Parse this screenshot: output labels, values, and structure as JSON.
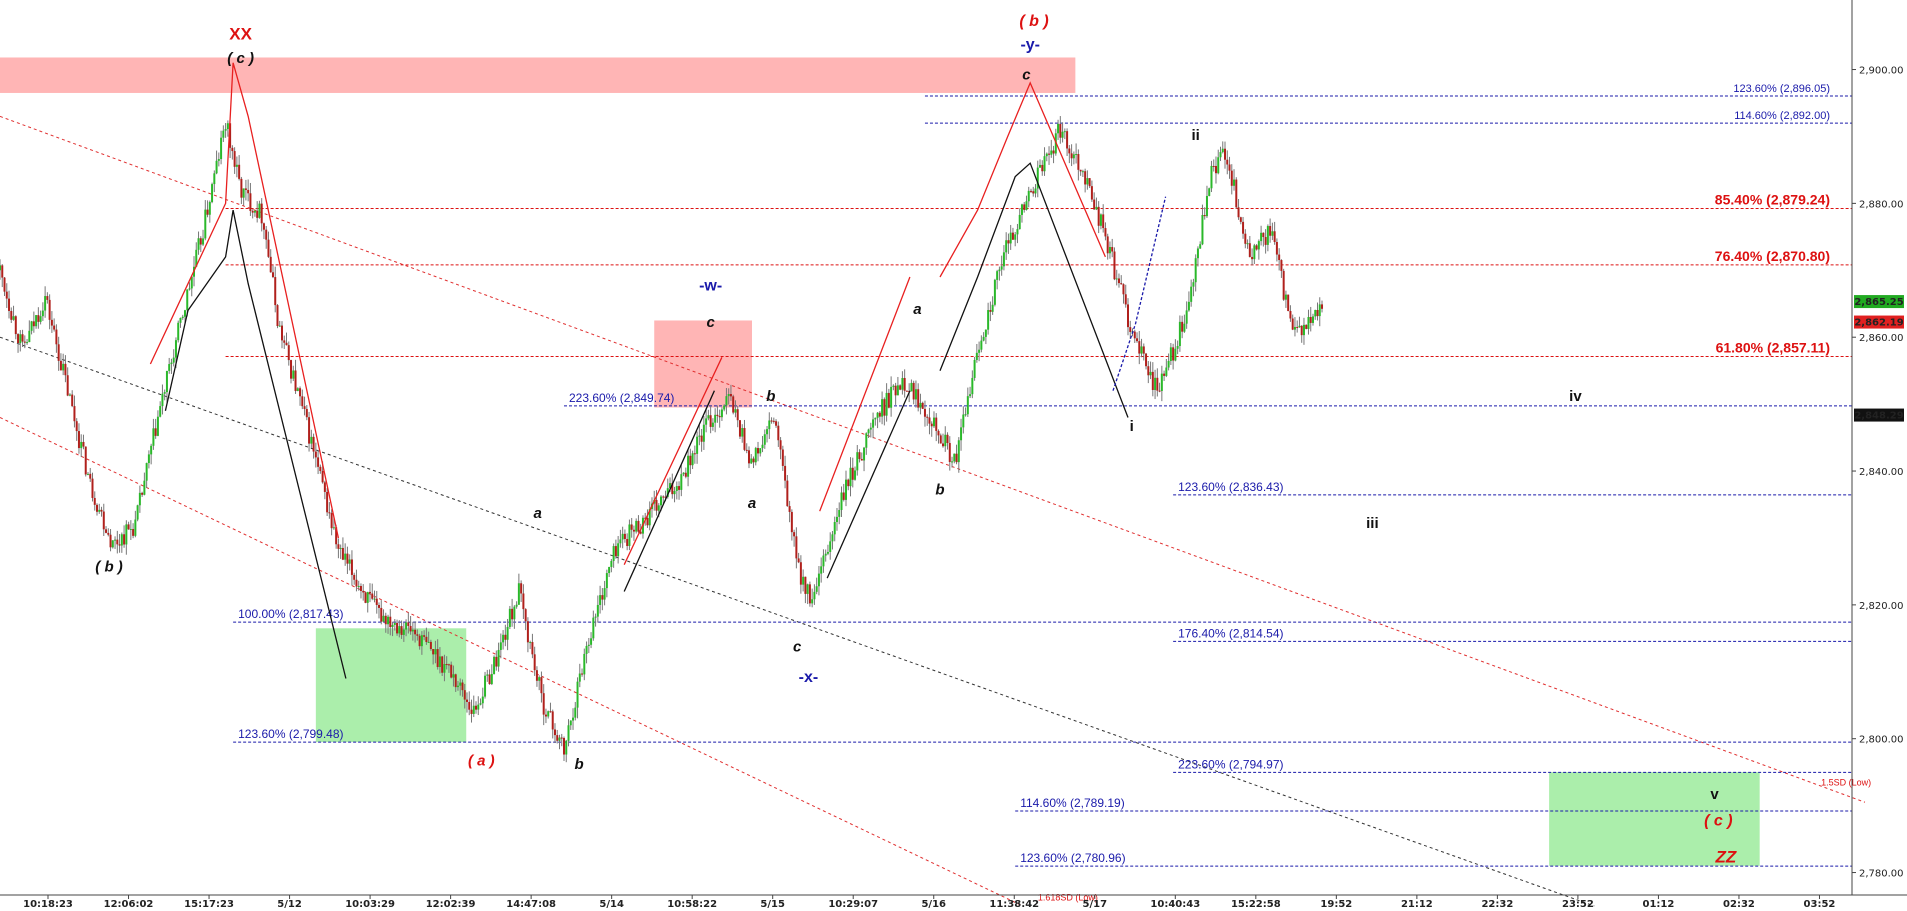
{
  "chart_data": {
    "type": "candlestick",
    "y_axis": {
      "range": [
        2775,
        2908
      ],
      "ticks": [
        2780,
        2800,
        2820,
        2840,
        2860,
        2880,
        2900
      ],
      "tick_labels": [
        "2,780.00",
        "2,800.00",
        "2,820.00",
        "2,840.00",
        "2,860.00",
        "2,880.00",
        "2,900.00"
      ]
    },
    "x_axis": {
      "tick_labels": [
        "10:18:23",
        "12:06:02",
        "15:17:23",
        "5/12",
        "10:03:29",
        "12:02:39",
        "14:47:08",
        "5/14",
        "10:58:22",
        "5/15",
        "10:29:07",
        "5/16",
        "11:38:42",
        "5/17",
        "10:40:43",
        "15:22:58",
        "19:52",
        "21:12",
        "22:32",
        "23:52",
        "01:12",
        "02:32",
        "03:52"
      ]
    },
    "price_badges": [
      {
        "value": 2865.25,
        "label": "2,865.25",
        "color": "#22aa22"
      },
      {
        "value": 2862.19,
        "label": "2,862.19",
        "color": "#e02020"
      },
      {
        "value": 2848.29,
        "label": "2,848.29",
        "color": "#111111"
      }
    ],
    "price_path": [
      [
        0,
        2870
      ],
      [
        3,
        2858
      ],
      [
        6,
        2866
      ],
      [
        9,
        2852
      ],
      [
        12,
        2838
      ],
      [
        15,
        2829
      ],
      [
        18,
        2832
      ],
      [
        21,
        2848
      ],
      [
        24,
        2862
      ],
      [
        27,
        2876
      ],
      [
        30,
        2892
      ],
      [
        32,
        2882
      ],
      [
        35,
        2878
      ],
      [
        37,
        2862
      ],
      [
        41,
        2846
      ],
      [
        45,
        2828
      ],
      [
        50,
        2819
      ],
      [
        55,
        2816
      ],
      [
        60,
        2810
      ],
      [
        63,
        2804
      ],
      [
        66,
        2812
      ],
      [
        69,
        2822
      ],
      [
        72,
        2806
      ],
      [
        75,
        2798
      ],
      [
        78,
        2814
      ],
      [
        82,
        2829
      ],
      [
        86,
        2833
      ],
      [
        90,
        2838
      ],
      [
        94,
        2847
      ],
      [
        97,
        2851
      ],
      [
        100,
        2841
      ],
      [
        103,
        2848
      ],
      [
        106,
        2826
      ],
      [
        108,
        2820
      ],
      [
        112,
        2836
      ],
      [
        116,
        2847
      ],
      [
        120,
        2854
      ],
      [
        124,
        2848
      ],
      [
        127,
        2841
      ],
      [
        130,
        2858
      ],
      [
        134,
        2874
      ],
      [
        138,
        2884
      ],
      [
        141,
        2891
      ],
      [
        144,
        2885
      ],
      [
        147,
        2875
      ],
      [
        151,
        2859
      ],
      [
        154,
        2852
      ],
      [
        158,
        2864
      ],
      [
        161,
        2884
      ],
      [
        163,
        2888
      ],
      [
        166,
        2872
      ],
      [
        169,
        2876
      ],
      [
        172,
        2860
      ],
      [
        176,
        2864
      ]
    ],
    "fib_levels": [
      {
        "label": "123.60% (2,896.05)",
        "value": 2896.05,
        "color": "#1a1aaa",
        "x0": 123,
        "bold": false,
        "size": "s"
      },
      {
        "label": "114.60% (2,892.00)",
        "value": 2892.0,
        "color": "#1a1aaa",
        "x0": 123,
        "bold": false,
        "size": "s"
      },
      {
        "label": "85.40% (2,879.24)",
        "value": 2879.24,
        "color": "#dd1111",
        "x0": 30,
        "bold": true,
        "size": "l"
      },
      {
        "label": "76.40% (2,870.80)",
        "value": 2870.8,
        "color": "#dd1111",
        "x0": 30,
        "bold": true,
        "size": "l"
      },
      {
        "label": "61.80% (2,857.11)",
        "value": 2857.11,
        "color": "#dd1111",
        "x0": 30,
        "bold": true,
        "size": "l"
      },
      {
        "label": "223.60% (2,849.74)",
        "value": 2849.74,
        "color": "#1a1aaa",
        "x0": 75,
        "bold": false,
        "size": "m"
      },
      {
        "label": "123.60% (2,836.43)",
        "value": 2836.43,
        "color": "#1a1aaa",
        "x0": 156,
        "bold": false,
        "size": "m"
      },
      {
        "label": "100.00% (2,817.43)",
        "value": 2817.43,
        "color": "#1a1aaa",
        "x0": 31,
        "bold": false,
        "size": "m"
      },
      {
        "label": "176.40% (2,814.54)",
        "value": 2814.54,
        "color": "#1a1aaa",
        "x0": 156,
        "bold": false,
        "size": "m"
      },
      {
        "label": "123.60% (2,799.48)",
        "value": 2799.48,
        "color": "#1a1aaa",
        "x0": 31,
        "bold": false,
        "size": "m"
      },
      {
        "label": "223.60% (2,794.97)",
        "value": 2794.97,
        "color": "#1a1aaa",
        "x0": 156,
        "bold": false,
        "size": "m"
      },
      {
        "label": "114.60% (2,789.19)",
        "value": 2789.19,
        "color": "#1a1aaa",
        "x0": 135,
        "bold": false,
        "size": "m"
      },
      {
        "label": "123.60% (2,780.96)",
        "value": 2780.96,
        "color": "#1a1aaa",
        "x0": 135,
        "bold": false,
        "size": "m"
      }
    ],
    "zones": [
      {
        "x0": 0,
        "x1": 143,
        "y0": 2896.5,
        "y1": 2901.8,
        "color": "#ff6b6b"
      },
      {
        "x0": 87,
        "x1": 100,
        "y0": 2849.5,
        "y1": 2862.5,
        "color": "#ff6b6b"
      },
      {
        "x0": 42,
        "x1": 62,
        "y0": 2799.5,
        "y1": 2816.5,
        "color": "#66e066"
      },
      {
        "x0": 206,
        "x1": 234,
        "y0": 2781,
        "y1": 2795,
        "color": "#66e066"
      }
    ],
    "channel_lines": [
      {
        "x0": 0,
        "y0": 2893,
        "x1": 248,
        "y1": 2790.5,
        "color": "#e03030",
        "dash": "3,3"
      },
      {
        "x0": 0,
        "y0": 2848,
        "x1": 136,
        "y1": 2775,
        "color": "#e03030",
        "dash": "3,3"
      },
      {
        "x0": 0,
        "y0": 2860,
        "x1": 212,
        "y1": 2775,
        "color": "#333333",
        "dash": "3,3"
      }
    ],
    "wave_lines": [
      {
        "points": [
          [
            20,
            2856
          ],
          [
            25,
            2868
          ],
          [
            30,
            2880
          ],
          [
            31,
            2901
          ],
          [
            33,
            2893
          ],
          [
            45,
            2830
          ]
        ],
        "color": "#e82020"
      },
      {
        "points": [
          [
            22,
            2849
          ],
          [
            25,
            2864
          ],
          [
            30,
            2872
          ],
          [
            31,
            2879
          ],
          [
            33,
            2868
          ],
          [
            46,
            2809
          ]
        ],
        "color": "#111111"
      },
      {
        "points": [
          [
            83,
            2826
          ],
          [
            96,
            2857
          ]
        ],
        "color": "#e82020"
      },
      {
        "points": [
          [
            83,
            2822
          ],
          [
            95,
            2852
          ]
        ],
        "color": "#111111"
      },
      {
        "points": [
          [
            109,
            2834
          ],
          [
            121,
            2869
          ]
        ],
        "color": "#e82020"
      },
      {
        "points": [
          [
            110,
            2824
          ],
          [
            121,
            2852
          ]
        ],
        "color": "#111111"
      },
      {
        "points": [
          [
            125,
            2869
          ],
          [
            130,
            2879
          ],
          [
            134,
            2890
          ],
          [
            137,
            2898
          ],
          [
            147,
            2872
          ]
        ],
        "color": "#e82020"
      },
      {
        "points": [
          [
            125,
            2855
          ],
          [
            130,
            2869
          ],
          [
            135,
            2884
          ],
          [
            137,
            2886
          ],
          [
            150,
            2848
          ]
        ],
        "color": "#111111"
      },
      {
        "points": [
          [
            148,
            2852
          ],
          [
            151,
            2862
          ],
          [
            155,
            2881
          ]
        ],
        "color": "#1a1aaa",
        "dash": "3,2"
      }
    ],
    "wave_labels": [
      {
        "text": "XX",
        "x": 32,
        "y": 2904.5,
        "color": "#dd1111",
        "size": 17,
        "italic": false
      },
      {
        "text": "( c )",
        "x": 32,
        "y": 2901,
        "color": "#111111",
        "size": 15,
        "italic": true
      },
      {
        "text": "( b )",
        "x": 14.5,
        "y": 2825,
        "color": "#111111",
        "size": 15,
        "italic": true
      },
      {
        "text": "( a )",
        "x": 64,
        "y": 2796,
        "color": "#dd1111",
        "size": 15,
        "italic": true
      },
      {
        "text": "a",
        "x": 71.5,
        "y": 2833,
        "color": "#111111",
        "size": 15,
        "italic": true
      },
      {
        "text": "b",
        "x": 77,
        "y": 2795.5,
        "color": "#111111",
        "size": 15,
        "italic": true
      },
      {
        "text": "-w-",
        "x": 94.5,
        "y": 2867,
        "color": "#1a1aaa",
        "size": 16,
        "italic": false
      },
      {
        "text": "c",
        "x": 94.5,
        "y": 2861.5,
        "color": "#111111",
        "size": 15,
        "italic": true
      },
      {
        "text": "b",
        "x": 102.5,
        "y": 2850.5,
        "color": "#111111",
        "size": 15,
        "italic": true
      },
      {
        "text": "a",
        "x": 100,
        "y": 2834.5,
        "color": "#111111",
        "size": 15,
        "italic": true
      },
      {
        "text": "c",
        "x": 106,
        "y": 2813,
        "color": "#111111",
        "size": 15,
        "italic": true
      },
      {
        "text": "-x-",
        "x": 107.5,
        "y": 2808.5,
        "color": "#1a1aaa",
        "size": 16,
        "italic": false
      },
      {
        "text": "a",
        "x": 122,
        "y": 2863.5,
        "color": "#111111",
        "size": 15,
        "italic": true
      },
      {
        "text": "b",
        "x": 125,
        "y": 2836.5,
        "color": "#111111",
        "size": 15,
        "italic": true
      },
      {
        "text": "( b )",
        "x": 137.5,
        "y": 2906.5,
        "color": "#dd1111",
        "size": 16,
        "italic": true
      },
      {
        "text": "-y-",
        "x": 137,
        "y": 2903,
        "color": "#1a1aaa",
        "size": 16,
        "italic": false
      },
      {
        "text": "c",
        "x": 136.5,
        "y": 2898.5,
        "color": "#111111",
        "size": 15,
        "italic": true
      },
      {
        "text": "ii",
        "x": 159,
        "y": 2889.5,
        "color": "#111111",
        "size": 15,
        "italic": false
      },
      {
        "text": "i",
        "x": 150.5,
        "y": 2846,
        "color": "#111111",
        "size": 15,
        "italic": false
      },
      {
        "text": "iv",
        "x": 209.5,
        "y": 2850.5,
        "color": "#111111",
        "size": 15,
        "italic": false
      },
      {
        "text": "iii",
        "x": 182.5,
        "y": 2831.5,
        "color": "#111111",
        "size": 15,
        "italic": false
      },
      {
        "text": "v",
        "x": 228,
        "y": 2791,
        "color": "#111111",
        "size": 15,
        "italic": false
      },
      {
        "text": "( c )",
        "x": 228.5,
        "y": 2787,
        "color": "#dd1111",
        "size": 16,
        "italic": true
      },
      {
        "text": "ZZ",
        "x": 229.5,
        "y": 2781.5,
        "color": "#dd1111",
        "size": 17,
        "italic": true
      }
    ],
    "side_notes": [
      {
        "text": "1.5SD (Low)",
        "x": 245.5,
        "y": 2793,
        "color": "#dd1111"
      },
      {
        "text": "1.618SD (Low)",
        "x": 142,
        "y": 2775.8,
        "color": "#dd1111"
      }
    ]
  }
}
